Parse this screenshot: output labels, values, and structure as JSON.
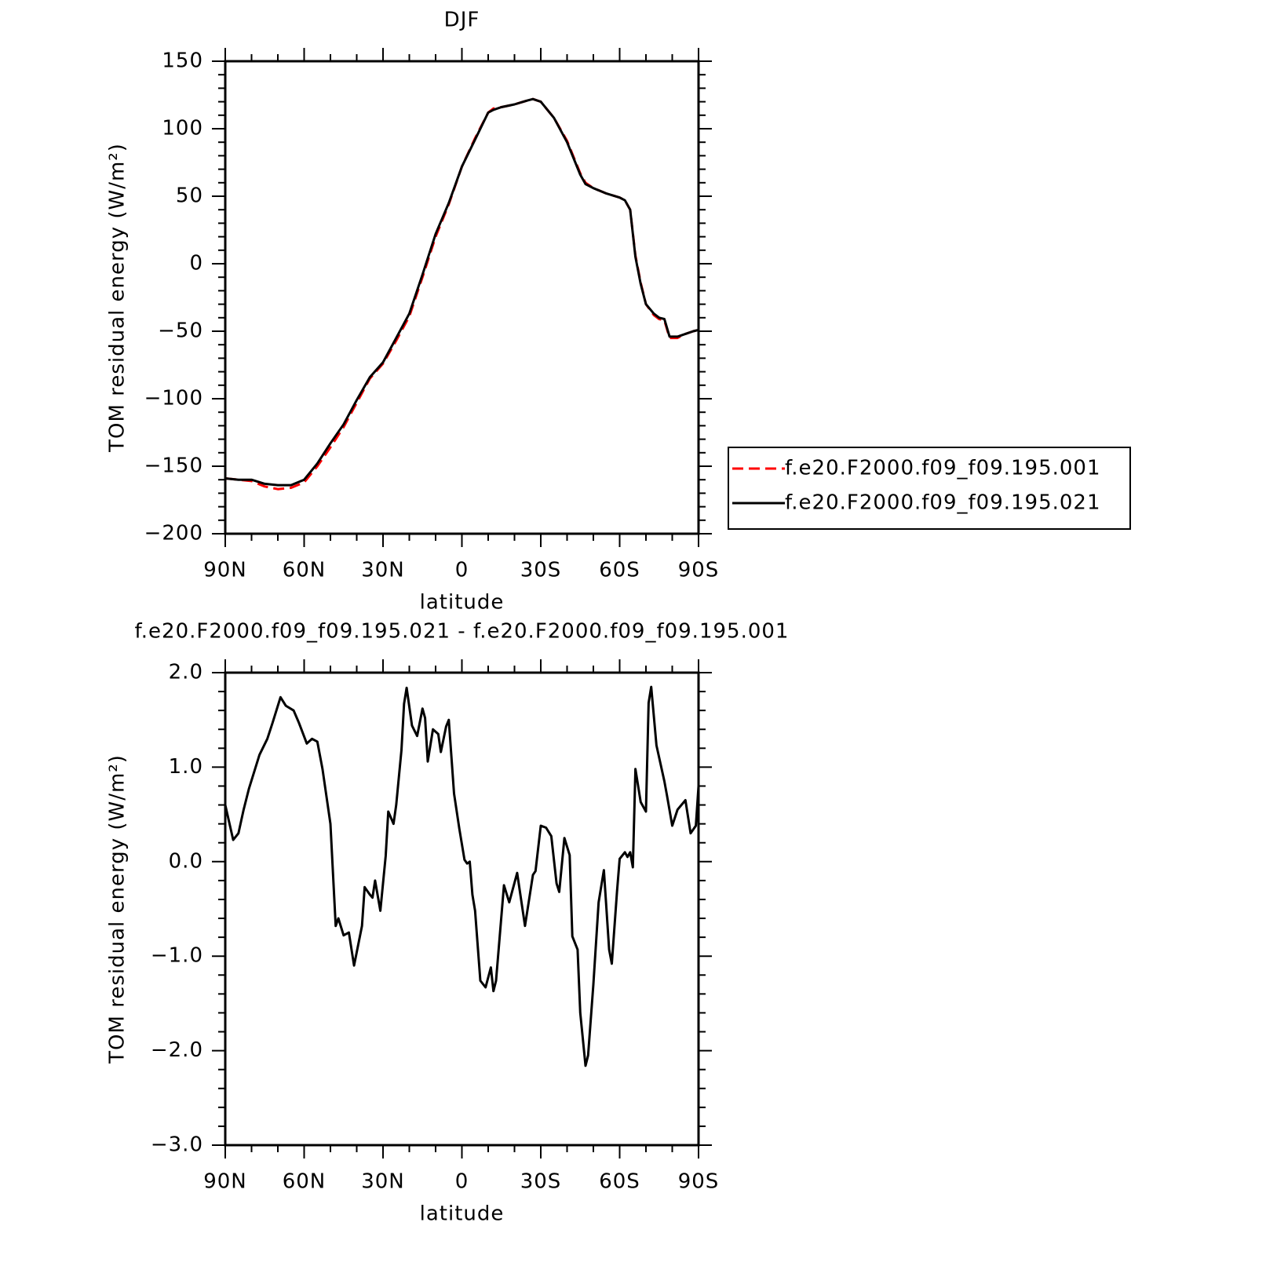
{
  "chart_data": [
    {
      "type": "line",
      "title": "DJF",
      "xlabel": "latitude",
      "ylabel": "TOM residual energy (W/m²)",
      "xlim": [
        90,
        -90
      ],
      "ylim": [
        -200,
        150
      ],
      "xticks": [
        {
          "value": 90,
          "label": "90N"
        },
        {
          "value": 60,
          "label": "60N"
        },
        {
          "value": 30,
          "label": "30N"
        },
        0,
        {
          "value": -30,
          "label": "30S"
        },
        {
          "value": -60,
          "label": "60S"
        },
        {
          "value": -90,
          "label": "90S"
        }
      ],
      "xminorticks": [
        80,
        70,
        50,
        40,
        20,
        10,
        -10,
        -20,
        -40,
        -50,
        -70,
        -80
      ],
      "yticks": [
        150,
        100,
        50,
        0,
        {
          "value": -50,
          "label": "−50"
        },
        {
          "value": -100,
          "label": "−100"
        },
        {
          "value": -150,
          "label": "−150"
        },
        {
          "value": -200,
          "label": "−200"
        }
      ],
      "yminorticks": [
        140,
        130,
        120,
        110,
        90,
        80,
        70,
        60,
        40,
        30,
        20,
        10,
        -10,
        -20,
        -30,
        -40,
        -60,
        -70,
        -80,
        -90,
        -110,
        -120,
        -130,
        -140,
        -160,
        -170,
        -180,
        -190
      ],
      "legend": "right",
      "x": [
        90,
        85,
        80,
        75,
        70,
        65,
        60,
        55,
        50,
        45,
        40,
        35,
        30,
        25,
        20,
        15,
        10,
        5,
        0,
        -5,
        -10,
        -12,
        -15,
        -20,
        -25,
        -27,
        -30,
        -35,
        -40,
        -45,
        -47,
        -50,
        -55,
        -60,
        -62,
        -64,
        -66,
        -68,
        -70,
        -73,
        -75,
        -77,
        -79,
        -82,
        -85,
        -88,
        -90
      ],
      "series": [
        {
          "name": "f.e20.F2000.f09_f09.195.001",
          "color": "#ff0000",
          "dash": "dashed",
          "values": [
            -159,
            -160,
            -161,
            -165,
            -167,
            -166,
            -162,
            -150,
            -136,
            -121,
            -103,
            -85,
            -74,
            -57,
            -39,
            -10,
            20,
            44,
            72,
            93,
            112,
            115,
            116,
            118,
            121,
            122,
            120,
            108,
            91,
            67,
            60,
            56,
            52,
            49,
            47,
            40,
            6,
            -14,
            -30,
            -38,
            -41,
            -42,
            -55,
            -55,
            -52,
            -50,
            -49
          ]
        },
        {
          "name": "f.e20.F2000.f09_f09.195.021",
          "color": "#000000",
          "dash": "solid",
          "values": [
            -159,
            -160,
            -160,
            -163,
            -164,
            -164,
            -160,
            -148,
            -133,
            -119,
            -101,
            -84,
            -73,
            -55,
            -37,
            -8,
            22,
            45,
            72,
            92,
            112,
            114,
            116,
            118,
            121,
            122,
            120,
            108,
            90,
            66,
            59,
            56,
            52,
            49,
            47,
            40,
            5,
            -15,
            -30,
            -37,
            -40,
            -41,
            -54,
            -54,
            -52,
            -50,
            -49
          ]
        }
      ]
    },
    {
      "type": "line",
      "title": "f.e20.F2000.f09_f09.195.021 - f.e20.F2000.f09_f09.195.001",
      "xlabel": "latitude",
      "ylabel": "TOM residual energy (W/m²)",
      "xlim": [
        90,
        -90
      ],
      "ylim": [
        -3,
        2
      ],
      "xticks": [
        {
          "value": 90,
          "label": "90N"
        },
        {
          "value": 60,
          "label": "60N"
        },
        {
          "value": 30,
          "label": "30N"
        },
        0,
        {
          "value": -30,
          "label": "30S"
        },
        {
          "value": -60,
          "label": "60S"
        },
        {
          "value": -90,
          "label": "90S"
        }
      ],
      "xminorticks": [
        80,
        70,
        50,
        40,
        20,
        10,
        -10,
        -20,
        -40,
        -50,
        -70,
        -80
      ],
      "yticks": [
        {
          "value": 2,
          "label": "2.0"
        },
        {
          "value": 1,
          "label": "1.0"
        },
        {
          "value": 0,
          "label": "0.0"
        },
        {
          "value": -1,
          "label": "−1.0"
        },
        {
          "value": -2,
          "label": "−2.0"
        },
        {
          "value": -3,
          "label": "−3.0"
        }
      ],
      "yminorticks": [
        1.8,
        1.6,
        1.4,
        1.2,
        0.8,
        0.6,
        0.4,
        0.2,
        -0.2,
        -0.4,
        -0.6,
        -0.8,
        -1.2,
        -1.4,
        -1.6,
        -1.8,
        -2.2,
        -2.4,
        -2.6,
        -2.8
      ],
      "color": "#000000",
      "x": [
        90,
        87,
        85,
        83,
        81,
        77,
        74,
        72,
        69,
        67,
        64,
        62,
        59,
        57,
        55,
        53,
        50,
        48,
        47,
        45,
        43,
        41,
        38,
        37,
        35,
        34,
        33,
        31,
        29,
        28,
        26,
        25,
        23,
        22,
        21,
        19,
        17,
        15,
        14,
        13,
        11,
        9,
        8,
        6,
        5,
        3,
        1,
        -1,
        -2,
        -3,
        -4,
        -5,
        -7,
        -9,
        -11,
        -12,
        -13,
        -16,
        -18,
        -21,
        -24,
        -27,
        -28,
        -30,
        -32,
        -34,
        -36,
        -37,
        -39,
        -41,
        -42,
        -44,
        -45,
        -47,
        -48,
        -50,
        -52,
        -54,
        -56,
        -57,
        -59,
        -60,
        -62,
        -63,
        -64,
        -65,
        -66,
        -68,
        -70,
        -71,
        -72,
        -74,
        -77,
        -78,
        -80,
        -82,
        -85,
        -87,
        -89,
        -90
      ],
      "values": [
        0.6,
        0.23,
        0.3,
        0.55,
        0.77,
        1.13,
        1.3,
        1.47,
        1.74,
        1.65,
        1.6,
        1.47,
        1.25,
        1.3,
        1.27,
        0.98,
        0.4,
        -0.68,
        -0.6,
        -0.78,
        -0.75,
        -1.1,
        -0.68,
        -0.27,
        -0.35,
        -0.38,
        -0.2,
        -0.52,
        0.06,
        0.53,
        0.4,
        0.6,
        1.18,
        1.67,
        1.84,
        1.44,
        1.33,
        1.62,
        1.52,
        1.06,
        1.4,
        1.35,
        1.16,
        1.43,
        1.5,
        0.72,
        0.35,
        0.02,
        -0.02,
        0,
        -0.35,
        -0.52,
        -1.26,
        -1.33,
        -1.12,
        -1.37,
        -1.26,
        -0.25,
        -0.43,
        -0.12,
        -0.68,
        -0.14,
        -0.1,
        0.38,
        0.36,
        0.27,
        -0.23,
        -0.32,
        0.25,
        0.07,
        -0.79,
        -0.93,
        -1.6,
        -2.16,
        -2.05,
        -1.3,
        -0.43,
        -0.09,
        -0.93,
        -1.08,
        -0.32,
        0.03,
        0.1,
        0.05,
        0.1,
        -0.06,
        0.98,
        0.63,
        0.53,
        1.68,
        1.85,
        1.23,
        0.85,
        0.7,
        0.38,
        0.55,
        0.65,
        0.3,
        0.38,
        0.8
      ]
    }
  ]
}
